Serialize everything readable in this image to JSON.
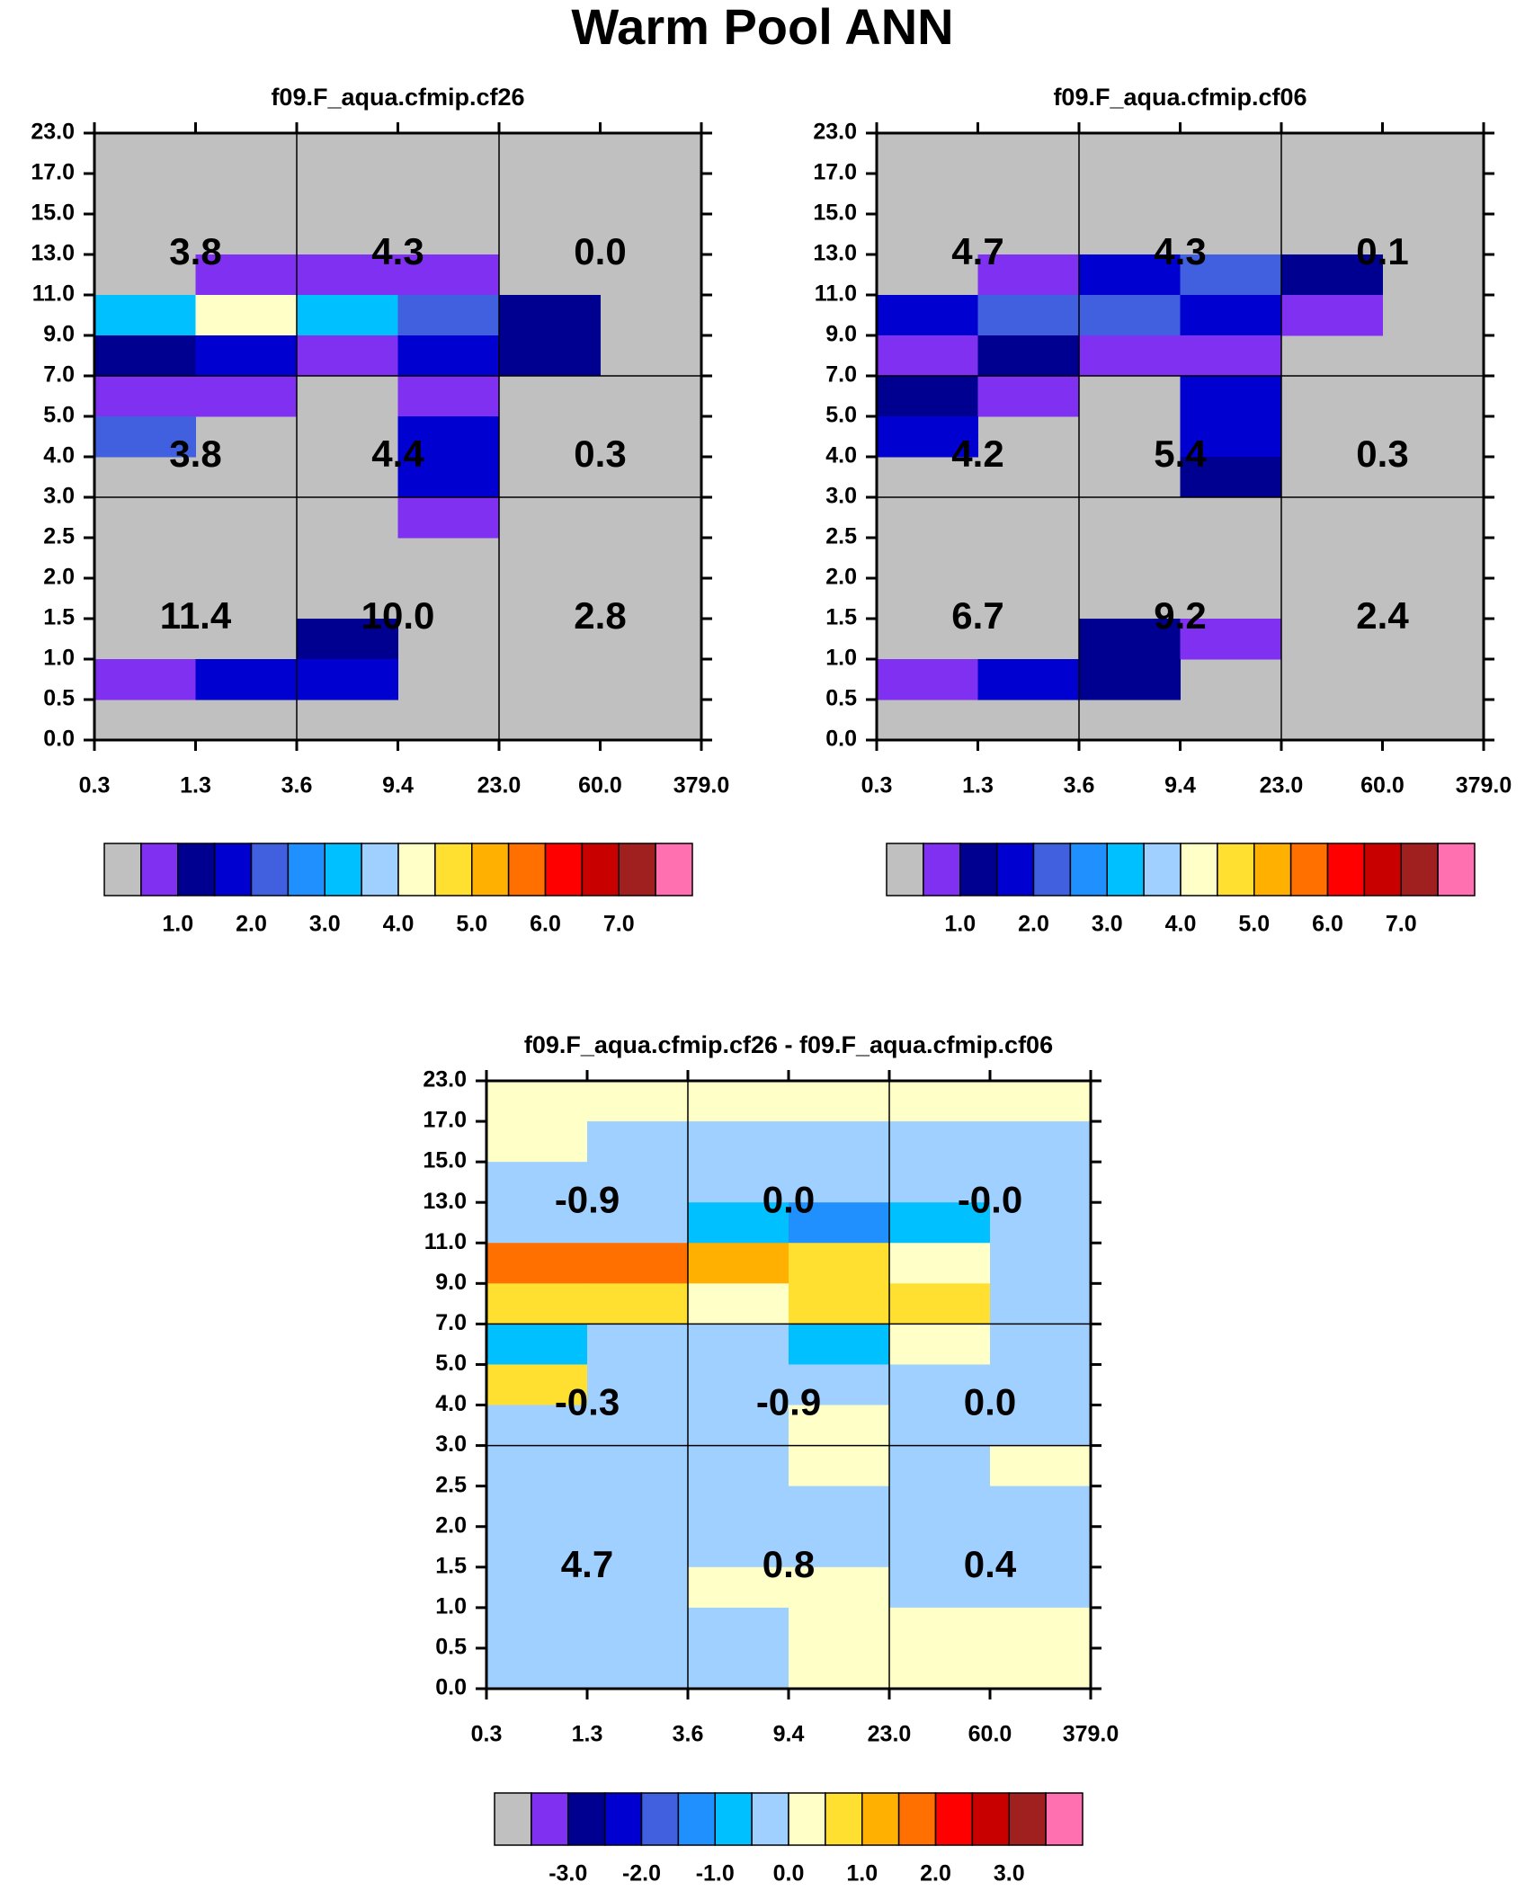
{
  "title": "Warm Pool ANN",
  "colors": {
    "background": "#c0c0c0",
    "abs_palette": [
      "#c0c0c0",
      "#8030f0",
      "#000090",
      "#0000d0",
      "#4060e0",
      "#2090ff",
      "#00c0ff",
      "#a0d0ff",
      "#ffffc8",
      "#ffe030",
      "#ffb000",
      "#ff7000",
      "#ff0000",
      "#c80000",
      "#a02020",
      "#ff70b0"
    ],
    "diff_palette": [
      "#c0c0c0",
      "#8030f0",
      "#000090",
      "#0000d0",
      "#4060e0",
      "#2090ff",
      "#00c0ff",
      "#a0d0ff",
      "#ffffc8",
      "#ffe030",
      "#ffb000",
      "#ff7000",
      "#ff0000",
      "#c80000",
      "#a02020",
      "#ff70b0"
    ]
  },
  "axes": {
    "x_ticks": [
      "0.3",
      "1.3",
      "3.6",
      "9.4",
      "23.0",
      "60.0",
      "379.0"
    ],
    "y_ticks": [
      "0.0",
      "0.5",
      "1.0",
      "1.5",
      "2.0",
      "2.5",
      "3.0",
      "4.0",
      "5.0",
      "7.0",
      "9.0",
      "11.0",
      "13.0",
      "15.0",
      "17.0",
      "23.0"
    ]
  },
  "colorbars": {
    "abs_labels": [
      "1.0",
      "2.0",
      "3.0",
      "4.0",
      "5.0",
      "6.0",
      "7.0"
    ],
    "diff_labels": [
      "-3.0",
      "-2.0",
      "-1.0",
      "0.0",
      "1.0",
      "2.0",
      "3.0"
    ]
  },
  "chart_data": [
    {
      "type": "heatmap",
      "title": "f09.F_aqua.cfmip.cf26",
      "xlabel": "",
      "ylabel": "",
      "palette": "abs",
      "notes": "rows listed from top (y bin 17.0-23.0) to bottom (0.0-0.5); columns = 6 x bins; values are color-class indices",
      "grid": [
        [
          0,
          0,
          0,
          0,
          0,
          0
        ],
        [
          0,
          0,
          0,
          0,
          0,
          0
        ],
        [
          0,
          0,
          0,
          0,
          0,
          0
        ],
        [
          0,
          1,
          1,
          1,
          0,
          0
        ],
        [
          6,
          8,
          6,
          4,
          2,
          0
        ],
        [
          2,
          3,
          1,
          3,
          2,
          0
        ],
        [
          1,
          1,
          0,
          1,
          0,
          0
        ],
        [
          4,
          0,
          0,
          3,
          0,
          0
        ],
        [
          0,
          0,
          0,
          3,
          0,
          0
        ],
        [
          0,
          0,
          0,
          1,
          0,
          0
        ],
        [
          0,
          0,
          0,
          0,
          0,
          0
        ],
        [
          0,
          0,
          0,
          0,
          0,
          0
        ],
        [
          0,
          0,
          2,
          0,
          0,
          0
        ],
        [
          1,
          3,
          3,
          0,
          0,
          0
        ],
        [
          0,
          0,
          0,
          0,
          0,
          0
        ]
      ],
      "annotations": [
        {
          "row": "high",
          "col": "low",
          "text": "11.4"
        },
        {
          "row": "high",
          "col": "mid",
          "text": "10.0"
        },
        {
          "row": "high",
          "col": "high",
          "text": "2.8"
        },
        {
          "row": "mid",
          "col": "low",
          "text": "3.8"
        },
        {
          "row": "mid",
          "col": "mid",
          "text": "4.4"
        },
        {
          "row": "mid",
          "col": "high",
          "text": "0.3"
        },
        {
          "row": "low",
          "col": "low",
          "text": "3.8"
        },
        {
          "row": "low",
          "col": "mid",
          "text": "4.3"
        },
        {
          "row": "low",
          "col": "high",
          "text": "0.0"
        }
      ]
    },
    {
      "type": "heatmap",
      "title": "f09.F_aqua.cfmip.cf06",
      "xlabel": "",
      "ylabel": "",
      "palette": "abs",
      "grid": [
        [
          0,
          0,
          0,
          0,
          0,
          0
        ],
        [
          0,
          0,
          0,
          0,
          0,
          0
        ],
        [
          0,
          0,
          0,
          0,
          0,
          0
        ],
        [
          0,
          1,
          3,
          4,
          2,
          0
        ],
        [
          3,
          4,
          4,
          3,
          1,
          0
        ],
        [
          1,
          2,
          1,
          1,
          0,
          0
        ],
        [
          2,
          1,
          0,
          3,
          0,
          0
        ],
        [
          3,
          0,
          0,
          3,
          0,
          0
        ],
        [
          0,
          0,
          0,
          2,
          0,
          0
        ],
        [
          0,
          0,
          0,
          0,
          0,
          0
        ],
        [
          0,
          0,
          0,
          0,
          0,
          0
        ],
        [
          0,
          0,
          0,
          0,
          0,
          0
        ],
        [
          0,
          0,
          2,
          1,
          0,
          0
        ],
        [
          1,
          3,
          2,
          0,
          0,
          0
        ],
        [
          0,
          0,
          0,
          0,
          0,
          0
        ]
      ],
      "annotations": [
        {
          "row": "high",
          "col": "low",
          "text": "6.7"
        },
        {
          "row": "high",
          "col": "mid",
          "text": "9.2"
        },
        {
          "row": "high",
          "col": "high",
          "text": "2.4"
        },
        {
          "row": "mid",
          "col": "low",
          "text": "4.2"
        },
        {
          "row": "mid",
          "col": "mid",
          "text": "5.4"
        },
        {
          "row": "mid",
          "col": "high",
          "text": "0.3"
        },
        {
          "row": "low",
          "col": "low",
          "text": "4.7"
        },
        {
          "row": "low",
          "col": "mid",
          "text": "4.3"
        },
        {
          "row": "low",
          "col": "high",
          "text": "0.1"
        }
      ]
    },
    {
      "type": "heatmap",
      "title": "f09.F_aqua.cfmip.cf26 - f09.F_aqua.cfmip.cf06",
      "xlabel": "",
      "ylabel": "",
      "palette": "diff",
      "grid": [
        [
          8,
          8,
          8,
          8,
          8,
          8
        ],
        [
          8,
          7,
          7,
          7,
          7,
          7
        ],
        [
          7,
          7,
          7,
          7,
          7,
          7
        ],
        [
          7,
          7,
          6,
          5,
          6,
          7
        ],
        [
          11,
          11,
          10,
          9,
          8,
          7
        ],
        [
          9,
          9,
          8,
          9,
          9,
          7
        ],
        [
          6,
          7,
          7,
          6,
          8,
          7
        ],
        [
          9,
          7,
          7,
          7,
          7,
          7
        ],
        [
          7,
          7,
          7,
          8,
          7,
          7
        ],
        [
          7,
          7,
          7,
          8,
          7,
          8
        ],
        [
          7,
          7,
          7,
          7,
          7,
          7
        ],
        [
          7,
          7,
          7,
          7,
          7,
          7
        ],
        [
          7,
          7,
          8,
          8,
          7,
          7
        ],
        [
          7,
          7,
          7,
          8,
          8,
          8
        ],
        [
          7,
          7,
          7,
          8,
          8,
          8
        ]
      ],
      "annotations": [
        {
          "row": "high",
          "col": "low",
          "text": "4.7"
        },
        {
          "row": "high",
          "col": "mid",
          "text": "0.8"
        },
        {
          "row": "high",
          "col": "high",
          "text": "0.4"
        },
        {
          "row": "mid",
          "col": "low",
          "text": "-0.3"
        },
        {
          "row": "mid",
          "col": "mid",
          "text": "-0.9"
        },
        {
          "row": "mid",
          "col": "high",
          "text": "0.0"
        },
        {
          "row": "low",
          "col": "low",
          "text": "-0.9"
        },
        {
          "row": "low",
          "col": "mid",
          "text": "0.0"
        },
        {
          "row": "low",
          "col": "high",
          "text": "-0.0"
        }
      ]
    }
  ]
}
